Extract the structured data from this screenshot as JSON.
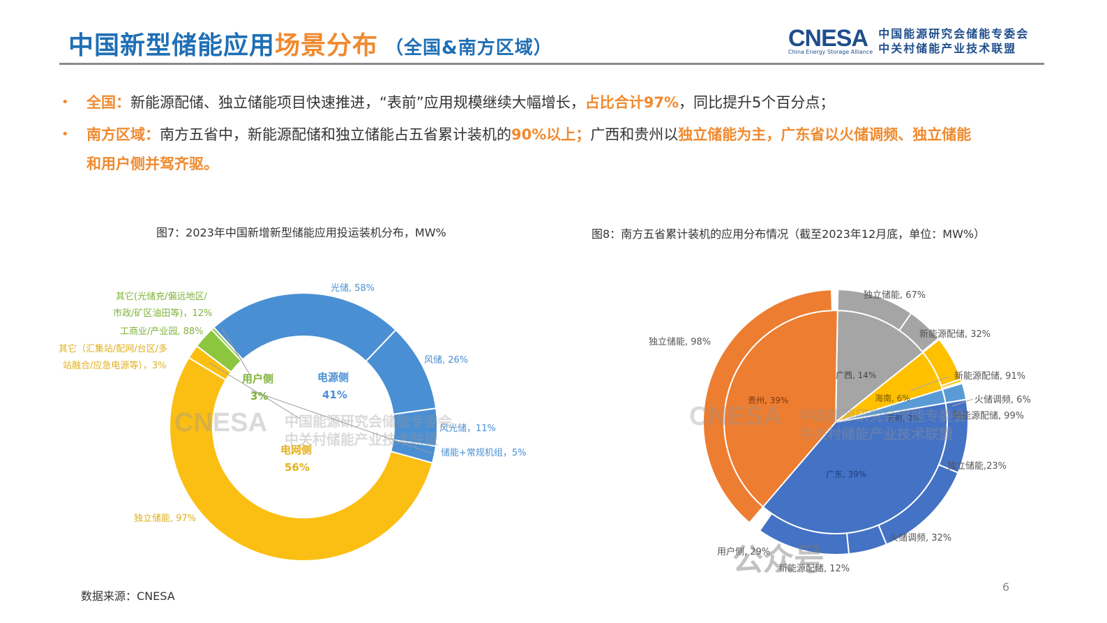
{
  "header": {
    "title_blue": "中国新型储能应用",
    "title_orange": "场景分布",
    "title_sub": "（全国&南方区域）",
    "logo": {
      "brand": "CNESA",
      "brand_sub": "China Energy Storage Alliance",
      "org_line1": "中国能源研究会储能专委会",
      "org_line2": "中关村储能产业技术联盟"
    }
  },
  "bullets": [
    {
      "label": "全国：",
      "text1": "新能源配储、独立储能项目快速推进，“表前”应用规模继续大幅增长，",
      "highlight1": "占比合计97%",
      "text2": "，同比提升5个百分点；"
    },
    {
      "label": "南方区域：",
      "text1": "南方五省中，新能源配储和独立储能占五省累计装机的",
      "highlight1": "90%以上；",
      "text2": "广西和贵州以",
      "highlight2": "独立储能为主，广东省以火储调频、独立储能",
      "cont": "和用户侧并驾齐驱。"
    }
  ],
  "chart_data": [
    {
      "type": "pie",
      "subtype": "double-donut",
      "title": "图7：2023年中国新增新型储能应用投运装机分布，MW%",
      "inner": [
        {
          "name": "电源侧",
          "value": 41,
          "color": "#4a8fd4"
        },
        {
          "name": "电网侧",
          "value": 56,
          "color": "#fbbf14"
        },
        {
          "name": "用户侧",
          "value": 3,
          "color": "#8cc63f"
        }
      ],
      "outer": [
        {
          "parent": "电源侧",
          "name": "光储",
          "value": 58,
          "color": "#4a8fd4"
        },
        {
          "parent": "电源侧",
          "name": "风储",
          "value": 26,
          "color": "#4a8fd4"
        },
        {
          "parent": "电源侧",
          "name": "风光储",
          "value": 11,
          "color": "#4a8fd4"
        },
        {
          "parent": "电源侧",
          "name": "储能+常规机组",
          "value": 5,
          "color": "#4a8fd4"
        },
        {
          "parent": "电网侧",
          "name": "独立储能",
          "value": 97,
          "color": "#fbbf14"
        },
        {
          "parent": "电网侧",
          "name": "其它（汇集站/配网/台区/多站融合/应急电源等）",
          "value": 3,
          "color": "#fbbf14"
        },
        {
          "parent": "用户侧",
          "name": "工商业/产业园",
          "value": 88,
          "color": "#8cc63f"
        },
        {
          "parent": "用户侧",
          "name": "其它(光储充/偏远地区/市政/矿区油田等)",
          "value": 12,
          "color": "#8cc63f"
        }
      ],
      "labels": {
        "inner_power": "电源侧",
        "inner_power_pct": "41%",
        "inner_grid": "电网侧",
        "inner_grid_pct": "56%",
        "inner_user": "用户侧",
        "inner_user_pct": "3%",
        "pv": "光储, 58%",
        "wind": "风储, 26%",
        "windpv": "风光储，11%",
        "thermal": "储能+常规机组，5%",
        "indep": "独立储能, 97%",
        "grid_other_1": "其它（汇集站/配网/台区/多",
        "grid_other_2": "站融合/应急电源等），3%",
        "ci": "工商业/产业园, 88%",
        "user_other_1": "其它(光储充/偏远地区/",
        "user_other_2": "市政/矿区油田等)，12%"
      }
    },
    {
      "type": "pie",
      "subtype": "sunburst",
      "title": "图8：南方五省累计装机的应用分布情况（截至2023年12月底，单位：MW%）",
      "inner": [
        {
          "name": "广东",
          "value": 39,
          "color": "#4472c4"
        },
        {
          "name": "贵州",
          "value": 39,
          "color": "#ed7d31"
        },
        {
          "name": "广西",
          "value": 14,
          "color": "#a5a5a5"
        },
        {
          "name": "海南",
          "value": 6,
          "color": "#ffc000"
        },
        {
          "name": "云南",
          "value": 2,
          "color": "#5b9bd5"
        }
      ],
      "outer": [
        {
          "parent": "贵州",
          "name": "独立储能",
          "value": 98
        },
        {
          "parent": "广西",
          "name": "独立储能",
          "value": 67
        },
        {
          "parent": "广西",
          "name": "新能源配储",
          "value": 32
        },
        {
          "parent": "海南",
          "name": "新能源配储",
          "value": 91
        },
        {
          "parent": "海南",
          "name": "火储调频",
          "value": 6
        },
        {
          "parent": "云南",
          "name": "新能源配储",
          "value": 99
        },
        {
          "parent": "广东",
          "name": "独立储能",
          "value": 23
        },
        {
          "parent": "广东",
          "name": "火储调频",
          "value": 32
        },
        {
          "parent": "广东",
          "name": "新能源配储",
          "value": 12
        },
        {
          "parent": "广东",
          "name": "用户侧",
          "value": 29
        }
      ],
      "labels": {
        "gz": "贵州, 39%",
        "gx": "广西, 14%",
        "hn": "海南, 6%",
        "yn": "云南, 2%",
        "gd": "广东, 39%",
        "gz_indep": "独立储能, 98%",
        "gx_indep": "独立储能, 67%",
        "gx_newe": "新能源配储, 32%",
        "hn_newe": "新能源配储, 91%",
        "hn_thermal": "火储调频, 6%",
        "yn_newe": "新能源配储, 99%",
        "gd_indep": "独立储能,23%",
        "gd_thermal": "火储调频, 32%",
        "gd_newe": "新能源配储, 12%",
        "gd_user": "用户侧, 29%"
      }
    }
  ],
  "watermarks": {
    "brand": "CNESA",
    "line1": "中国能源研究会储能专委会",
    "line2": "中关村储能产业技术联盟",
    "wechat": "公众号"
  },
  "footer": {
    "source": "数据来源：CNESA",
    "page_number": "6"
  }
}
